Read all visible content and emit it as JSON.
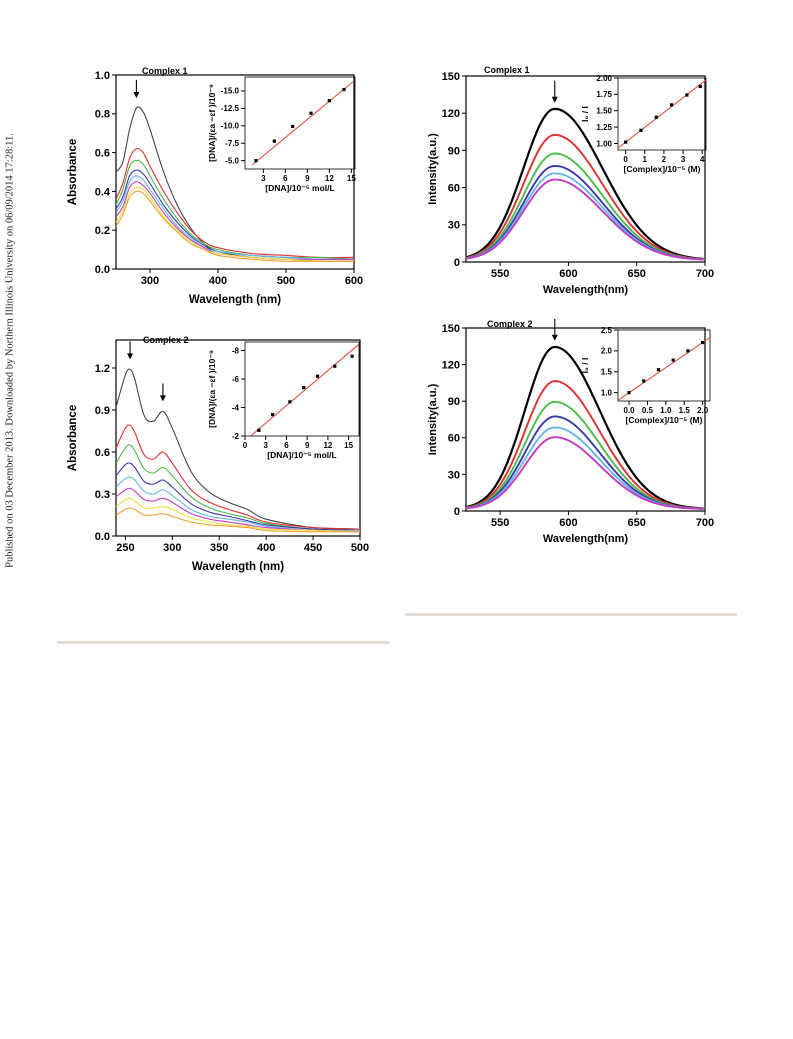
{
  "side_note": "Published on 03 December 2013. Downloaded by Northern Illinois University on 06/09/2014 17:28:11.",
  "colors": {
    "rule": "#e3ddd4",
    "fit_line": "#e05040",
    "absorbance_series": [
      "#444444",
      "#e03030",
      "#4cba4c",
      "#3a3aa8",
      "#66b7e8",
      "#c23cc2",
      "#f0e040",
      "#f0a030"
    ],
    "emission_series": [
      "#000000",
      "#e03030",
      "#4cba4c",
      "#3a3aa8",
      "#66b7e8",
      "#c23cc2"
    ]
  },
  "chart_data": [
    {
      "id": "abs1",
      "type": "line",
      "title": "Complex 1",
      "xlabel": "Wavelength (nm)",
      "ylabel": "Absorbance",
      "xlim": [
        250,
        600
      ],
      "ylim": [
        0,
        1.0
      ],
      "xticks": [
        "300",
        "400",
        "500",
        "600"
      ],
      "yticks": [
        "0.0",
        "0.2",
        "0.4",
        "0.6",
        "0.8",
        "1.0"
      ],
      "arrows_at_x": [
        280
      ],
      "x": [
        250,
        260,
        270,
        280,
        290,
        300,
        320,
        340,
        360,
        380,
        400,
        450,
        500,
        550,
        600
      ],
      "series": [
        {
          "values": [
            0.5,
            0.55,
            0.72,
            0.83,
            0.81,
            0.72,
            0.5,
            0.33,
            0.21,
            0.13,
            0.09,
            0.06,
            0.05,
            0.04,
            0.04
          ]
        },
        {
          "values": [
            0.36,
            0.44,
            0.57,
            0.62,
            0.6,
            0.53,
            0.4,
            0.29,
            0.2,
            0.14,
            0.11,
            0.08,
            0.07,
            0.06,
            0.06
          ]
        },
        {
          "values": [
            0.33,
            0.41,
            0.53,
            0.56,
            0.54,
            0.48,
            0.36,
            0.26,
            0.18,
            0.13,
            0.1,
            0.07,
            0.06,
            0.06,
            0.05
          ]
        },
        {
          "values": [
            0.31,
            0.37,
            0.48,
            0.51,
            0.49,
            0.44,
            0.33,
            0.24,
            0.17,
            0.12,
            0.09,
            0.07,
            0.06,
            0.05,
            0.05
          ]
        },
        {
          "values": [
            0.29,
            0.35,
            0.45,
            0.48,
            0.46,
            0.41,
            0.31,
            0.22,
            0.16,
            0.11,
            0.09,
            0.07,
            0.06,
            0.05,
            0.05
          ]
        },
        {
          "values": [
            0.27,
            0.32,
            0.42,
            0.45,
            0.43,
            0.39,
            0.29,
            0.21,
            0.15,
            0.11,
            0.08,
            0.06,
            0.05,
            0.05,
            0.05
          ]
        },
        {
          "values": [
            0.24,
            0.3,
            0.39,
            0.42,
            0.41,
            0.37,
            0.27,
            0.2,
            0.14,
            0.1,
            0.08,
            0.06,
            0.05,
            0.04,
            0.04
          ]
        },
        {
          "values": [
            0.22,
            0.28,
            0.37,
            0.4,
            0.39,
            0.35,
            0.26,
            0.19,
            0.13,
            0.1,
            0.07,
            0.05,
            0.04,
            0.04,
            0.04
          ]
        }
      ],
      "inset": {
        "xlabel": "[DNA]/10⁻⁵  mol/L",
        "ylabel": "[DNA]/(εa −εf )/10⁻⁹",
        "xlim": [
          0.5,
          15.5
        ],
        "ylim": [
          -3.8,
          -17.0
        ],
        "xticks": [
          "3",
          "6",
          "9",
          "12",
          "15"
        ],
        "yticks": [
          "-5.0",
          "-7.5",
          "-10.0",
          "-12.5",
          "-15.0"
        ],
        "points": [
          [
            2,
            -5.0
          ],
          [
            4.5,
            -7.8
          ],
          [
            7,
            -9.9
          ],
          [
            9.5,
            -11.8
          ],
          [
            12,
            -13.6
          ],
          [
            14,
            -15.2
          ]
        ],
        "fit": [
          [
            1.5,
            -4.4
          ],
          [
            15.2,
            -16.3
          ]
        ]
      }
    },
    {
      "id": "abs2",
      "type": "line",
      "title": "Complex  2",
      "xlabel": "Wavelength (nm)",
      "ylabel": "Absorbance",
      "xlim": [
        240,
        500
      ],
      "ylim": [
        0,
        1.4
      ],
      "xticks": [
        "250",
        "300",
        "350",
        "400",
        "450",
        "500"
      ],
      "yticks": [
        "0.0",
        "0.3",
        "0.6",
        "0.9",
        "1.2"
      ],
      "arrows_at_x": [
        255,
        290
      ],
      "x": [
        240,
        250,
        255,
        260,
        270,
        280,
        290,
        300,
        320,
        340,
        360,
        380,
        400,
        450,
        500
      ],
      "series": [
        {
          "values": [
            0.92,
            1.15,
            1.19,
            1.12,
            0.86,
            0.82,
            0.89,
            0.77,
            0.46,
            0.31,
            0.24,
            0.19,
            0.12,
            0.06,
            0.05
          ]
        },
        {
          "values": [
            0.63,
            0.77,
            0.79,
            0.74,
            0.58,
            0.55,
            0.6,
            0.52,
            0.33,
            0.24,
            0.19,
            0.15,
            0.1,
            0.06,
            0.05
          ]
        },
        {
          "values": [
            0.52,
            0.63,
            0.65,
            0.61,
            0.48,
            0.45,
            0.49,
            0.43,
            0.28,
            0.2,
            0.16,
            0.13,
            0.09,
            0.05,
            0.04
          ]
        },
        {
          "values": [
            0.43,
            0.51,
            0.52,
            0.49,
            0.39,
            0.37,
            0.4,
            0.35,
            0.23,
            0.17,
            0.14,
            0.11,
            0.08,
            0.05,
            0.04
          ]
        },
        {
          "values": [
            0.35,
            0.41,
            0.42,
            0.4,
            0.32,
            0.3,
            0.33,
            0.29,
            0.19,
            0.14,
            0.12,
            0.1,
            0.07,
            0.04,
            0.04
          ]
        },
        {
          "values": [
            0.28,
            0.33,
            0.34,
            0.32,
            0.26,
            0.25,
            0.27,
            0.24,
            0.16,
            0.12,
            0.1,
            0.08,
            0.06,
            0.04,
            0.03
          ]
        },
        {
          "values": [
            0.21,
            0.26,
            0.27,
            0.25,
            0.2,
            0.2,
            0.21,
            0.19,
            0.13,
            0.1,
            0.08,
            0.07,
            0.05,
            0.04,
            0.03
          ]
        },
        {
          "values": [
            0.15,
            0.19,
            0.2,
            0.19,
            0.15,
            0.15,
            0.16,
            0.14,
            0.1,
            0.08,
            0.07,
            0.06,
            0.04,
            0.03,
            0.03
          ]
        }
      ],
      "inset": {
        "xlabel": "[DNA]/10⁻⁵  mol/L",
        "ylabel": "[DNA]/(εa −εf )/10⁻⁹",
        "xlim": [
          0,
          16.5
        ],
        "ylim": [
          -2,
          -8.6
        ],
        "xticks": [
          "0",
          "3",
          "6",
          "9",
          "12",
          "15"
        ],
        "yticks": [
          "-2",
          "-4",
          "-6",
          "-8"
        ],
        "points": [
          [
            2,
            -2.4
          ],
          [
            4,
            -3.5
          ],
          [
            6.5,
            -4.4
          ],
          [
            8.5,
            -5.4
          ],
          [
            10.5,
            -6.2
          ],
          [
            13,
            -6.9
          ],
          [
            15.5,
            -7.6
          ]
        ],
        "fit": [
          [
            0.8,
            -2.0
          ],
          [
            16.4,
            -8.4
          ]
        ]
      }
    },
    {
      "id": "em1",
      "type": "line",
      "title": "Complex 1",
      "xlabel": "Wavelength(nm)",
      "ylabel": "Intensity(a.u.)",
      "xlim": [
        525,
        700
      ],
      "ylim": [
        0,
        150
      ],
      "xticks": [
        "550",
        "600",
        "650",
        "700"
      ],
      "yticks": [
        "0",
        "30",
        "60",
        "90",
        "120",
        "150"
      ],
      "arrows_at_x": [
        590
      ],
      "peak_x": 590,
      "width_left": 23,
      "width_right": 35,
      "peaks": [
        122,
        101,
        86,
        76,
        70,
        65
      ],
      "inset": {
        "xlabel": "[Complex]/10⁻⁵ (M)",
        "ylabel": "I₀ / I",
        "xlim": [
          -0.4,
          4.2
        ],
        "ylim": [
          0.9,
          2.0
        ],
        "xticks": [
          "0",
          "1",
          "2",
          "3",
          "4"
        ],
        "yticks": [
          "1.00",
          "1.25",
          "1.50",
          "1.75",
          "2.00"
        ],
        "points": [
          [
            0,
            1.02
          ],
          [
            0.8,
            1.2
          ],
          [
            1.6,
            1.4
          ],
          [
            2.4,
            1.59
          ],
          [
            3.2,
            1.74
          ],
          [
            3.9,
            1.87
          ]
        ],
        "fit": [
          [
            -0.4,
            0.93
          ],
          [
            4.2,
            1.97
          ]
        ]
      }
    },
    {
      "id": "em2",
      "type": "line",
      "title": "Complex 2",
      "xlabel": "Wavelength(nm)",
      "ylabel": "Intensity(a.u.)",
      "xlim": [
        525,
        700
      ],
      "ylim": [
        0,
        150
      ],
      "xticks": [
        "550",
        "600",
        "650",
        "700"
      ],
      "yticks": [
        "0",
        "30",
        "60",
        "90",
        "120",
        "150"
      ],
      "arrows_at_x": [
        590
      ],
      "peak_x": 590,
      "width_left": 22,
      "width_right": 33,
      "peaks": [
        133,
        105,
        88,
        76,
        67,
        59
      ],
      "inset": {
        "xlabel": "[Complex]/10⁻⁵ (M)",
        "ylabel": "I₀ / I",
        "xlim": [
          -0.3,
          2.2
        ],
        "ylim": [
          0.8,
          2.5
        ],
        "xticks": [
          "0.0",
          "0.5",
          "1.0",
          "1.5",
          "2.0"
        ],
        "yticks": [
          "1.0",
          "1.5",
          "2.0",
          "2.5"
        ],
        "points": [
          [
            0,
            1.0
          ],
          [
            0.4,
            1.28
          ],
          [
            0.8,
            1.55
          ],
          [
            1.2,
            1.78
          ],
          [
            1.6,
            2.0
          ],
          [
            2.0,
            2.2
          ]
        ],
        "fit": [
          [
            -0.3,
            0.82
          ],
          [
            2.2,
            2.32
          ]
        ]
      }
    }
  ]
}
